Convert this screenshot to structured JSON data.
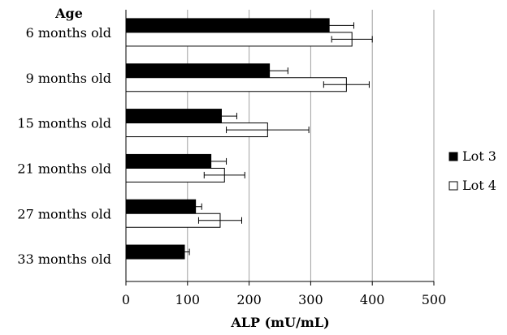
{
  "chart_data": {
    "type": "bar",
    "orientation": "horizontal",
    "category_axis_title": "Age",
    "categories": [
      "6 months old",
      "9 months old",
      "15 months old",
      "21 months old",
      "27 months old",
      "33 months old"
    ],
    "series": [
      {
        "name": "Lot 3",
        "color": "#000000",
        "values": [
          330,
          233,
          155,
          138,
          113,
          95
        ],
        "errors": [
          40,
          30,
          25,
          25,
          10,
          8
        ]
      },
      {
        "name": "Lot 4",
        "color": "#ffffff",
        "values": [
          367,
          358,
          230,
          160,
          153,
          null
        ],
        "errors": [
          33,
          37,
          67,
          33,
          35,
          null
        ]
      }
    ],
    "xlabel": "ALP (mU/mL)",
    "xlim": [
      0,
      500
    ],
    "xticks": [
      "0",
      "100",
      "200",
      "300",
      "400",
      "500"
    ],
    "grid": "vertical",
    "legend_placement": "right"
  }
}
